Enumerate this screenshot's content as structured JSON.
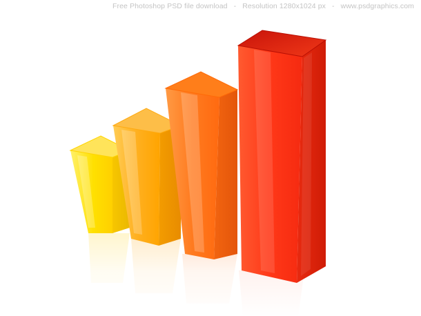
{
  "watermark": {
    "part1": "Free Photoshop PSD file download",
    "separator": "-",
    "part2": "Resolution 1280x1024 px",
    "part3": "www.psdgraphics.com"
  },
  "bars": [
    {
      "id": "yellow",
      "top": "#ffe260",
      "left": "#ffe400",
      "right": "#f2c400",
      "dark": "#f4b800"
    },
    {
      "id": "amber",
      "top": "#fdbb40",
      "left": "#ffb52a",
      "right": "#f19600",
      "dark": "#e98a00"
    },
    {
      "id": "orange",
      "top": "#ff7d1a",
      "left": "#ff7a22",
      "right": "#f05a0a",
      "dark": "#e0520a"
    },
    {
      "id": "red",
      "top": "#e8220c",
      "left": "#ff3516",
      "right": "#dd1d08",
      "dark": "#c51206"
    }
  ]
}
